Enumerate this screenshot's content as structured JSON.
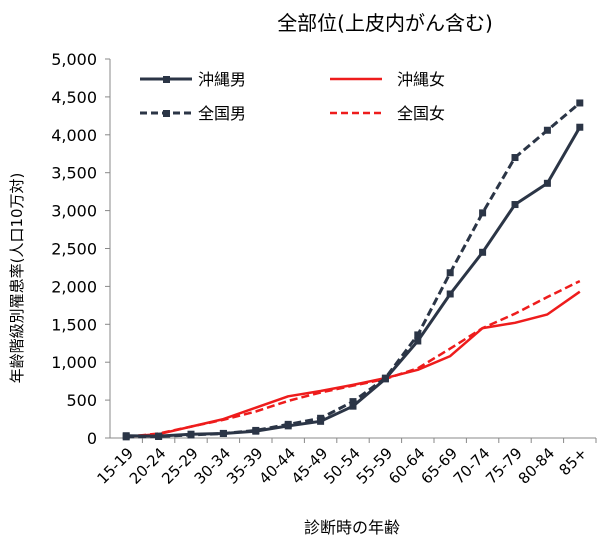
{
  "chart_data": {
    "type": "line",
    "title": "全部位(上皮内がん含む)",
    "xlabel": "診断時の年齢",
    "ylabel": "年齢階級別罹患率(人口10万対)",
    "ylim": [
      0,
      5000
    ],
    "yticks": [
      "0",
      "500",
      "1,000",
      "1,500",
      "2,000",
      "2,500",
      "3,000",
      "3,500",
      "4,000",
      "4,500",
      "5,000"
    ],
    "grid": false,
    "legend_position": "top",
    "categories": [
      "15-19",
      "20-24",
      "25-29",
      "30-34",
      "35-39",
      "40-44",
      "45-49",
      "50-54",
      "55-59",
      "60-64",
      "65-69",
      "70-74",
      "75-79",
      "80-84",
      "85+"
    ],
    "series": [
      {
        "name": "沖縄男",
        "color": "#2b3546",
        "dash": "solid",
        "marker": "square",
        "values": [
          30,
          25,
          50,
          60,
          90,
          160,
          220,
          420,
          780,
          1280,
          1900,
          2450,
          3080,
          3360,
          4100
        ]
      },
      {
        "name": "全国男",
        "color": "#2b3546",
        "dash": "dashed",
        "marker": "square",
        "values": [
          15,
          20,
          40,
          60,
          100,
          180,
          260,
          480,
          790,
          1360,
          2180,
          2970,
          3700,
          4060,
          4420
        ]
      },
      {
        "name": "沖縄女",
        "color": "#ee1c1c",
        "dash": "solid",
        "marker": "none",
        "values": [
          20,
          50,
          150,
          250,
          400,
          550,
          620,
          700,
          790,
          900,
          1080,
          1450,
          1520,
          1630,
          1930
        ]
      },
      {
        "name": "全国女",
        "color": "#ee1c1c",
        "dash": "dashed",
        "marker": "none",
        "values": [
          15,
          60,
          150,
          240,
          350,
          490,
          600,
          690,
          780,
          920,
          1180,
          1450,
          1640,
          1860,
          2070
        ]
      }
    ]
  }
}
